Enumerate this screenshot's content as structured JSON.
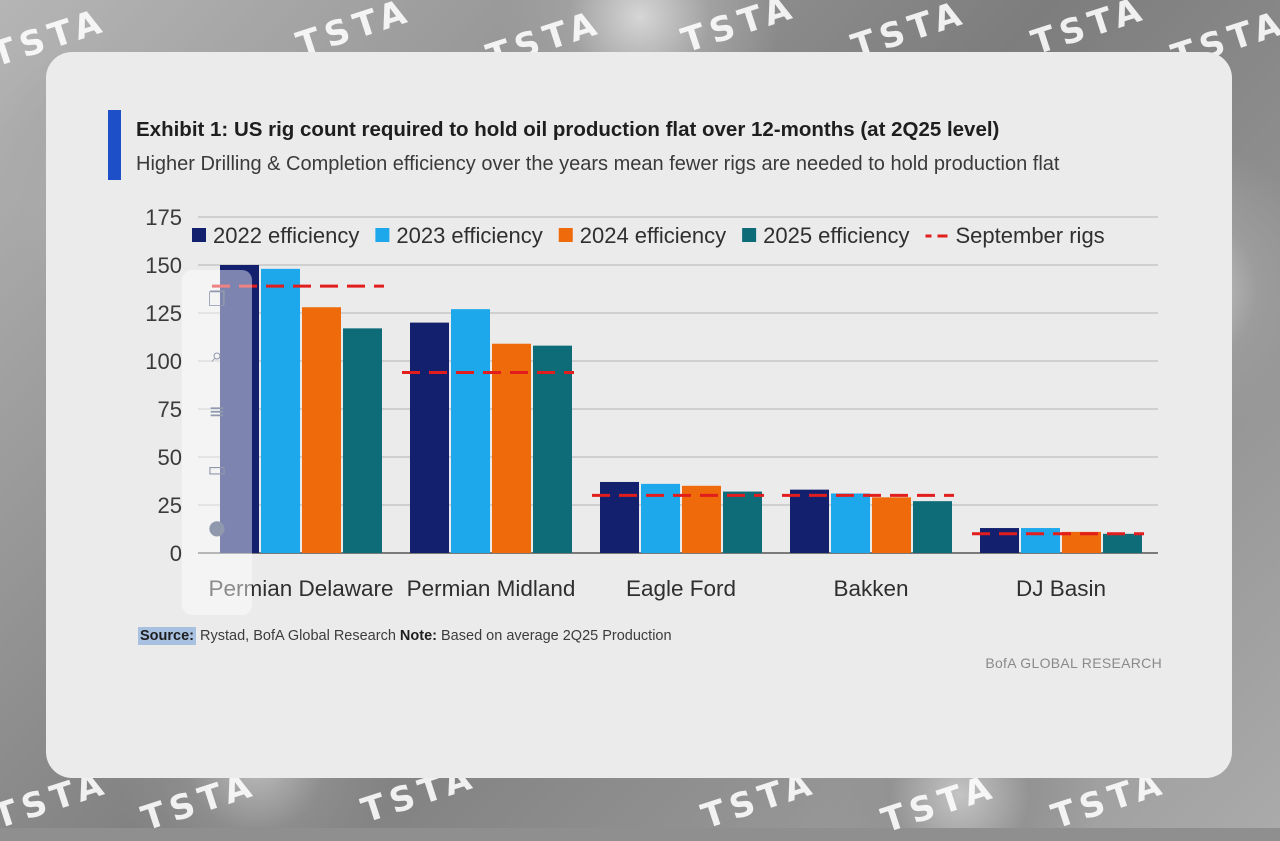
{
  "watermark": {
    "text": "TSTA"
  },
  "exhibit": {
    "title": "Exhibit 1: US rig count required to hold oil production flat over 12-months (at 2Q25 level)",
    "subtitle": "Higher Drilling & Completion efficiency over the years mean fewer rigs are needed to hold production flat",
    "source_label": "Source:",
    "source_text": "Rystad, BofA Global Research",
    "note_label": "Note:",
    "note_text": "Based on average 2Q25 Production",
    "brand": "BofA GLOBAL RESEARCH"
  },
  "side_toolbar": {
    "icons": [
      "copy-icon",
      "search-icon",
      "translate-icon",
      "chat-icon",
      "assistant-icon"
    ]
  },
  "colors": {
    "s2022": "#13206e",
    "s2023": "#1ea8ec",
    "s2024": "#ee6a0b",
    "s2025": "#0e6b78",
    "sept": "#e21d1d",
    "grid": "#c6c6c6",
    "axis": "#555555"
  },
  "chart_data": {
    "type": "bar",
    "title": "Exhibit 1: US rig count required to hold oil production flat over 12-months (at 2Q25 level)",
    "xlabel": "",
    "ylabel": "",
    "ylim": [
      0,
      175
    ],
    "yticks": [
      0,
      25,
      50,
      75,
      100,
      125,
      150,
      175
    ],
    "grid": true,
    "legend_position": "top",
    "categories": [
      "Permian Delaware",
      "Permian Midland",
      "Eagle Ford",
      "Bakken",
      "DJ Basin"
    ],
    "series": [
      {
        "name": "2022 efficiency",
        "values": [
          150,
          120,
          37,
          33,
          13
        ]
      },
      {
        "name": "2023 efficiency",
        "values": [
          148,
          127,
          36,
          31,
          13
        ]
      },
      {
        "name": "2024 efficiency",
        "values": [
          128,
          109,
          35,
          29,
          11
        ]
      },
      {
        "name": "2025 efficiency",
        "values": [
          117,
          108,
          32,
          27,
          10
        ]
      }
    ],
    "reference": {
      "name": "September rigs",
      "values": [
        139,
        94,
        30,
        30,
        10
      ]
    }
  }
}
